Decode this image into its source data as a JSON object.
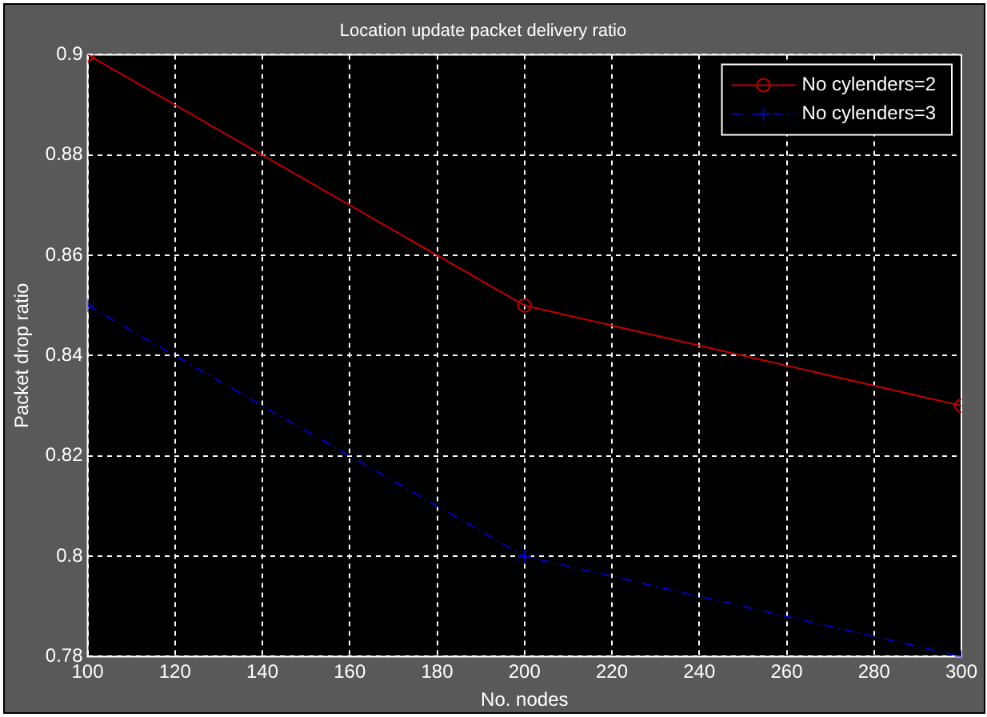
{
  "chart_data": {
    "type": "line",
    "title": "Location update packet delivery ratio",
    "xlabel": "No. nodes",
    "ylabel": "Packet drop ratio",
    "x": [
      100,
      200,
      300
    ],
    "series": [
      {
        "name": "No cylenders=2",
        "color": "#c00000",
        "values": [
          0.9,
          0.85,
          0.83
        ],
        "marker": "circle",
        "line_style": "solid"
      },
      {
        "name": "No cylenders=3",
        "color": "#0000c0",
        "values": [
          0.85,
          0.8,
          0.78
        ],
        "marker": "cross",
        "line_style": "dashed"
      }
    ],
    "xlim": [
      100,
      300
    ],
    "xticks": [
      100,
      120,
      140,
      160,
      180,
      200,
      220,
      240,
      260,
      280,
      300
    ],
    "ylim": [
      0.78,
      0.9
    ],
    "yticks": [
      0.78,
      0.8,
      0.82,
      0.84,
      0.86,
      0.88,
      0.9
    ],
    "grid": true,
    "legend": "top right"
  }
}
